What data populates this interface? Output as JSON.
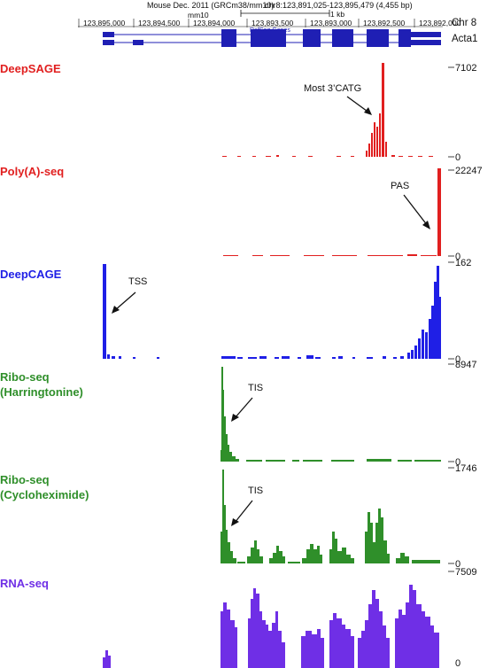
{
  "header": {
    "assembly": "Mouse Dec. 2011 (GRCm38/mm10)",
    "position": "chr8:123,891,025-123,895,479 (4,455 bp)",
    "scale_assembly": "mm10",
    "scale_label": "1 kb",
    "chrom_label": "Chr 8",
    "gene_label": "Acta1",
    "gene_track_name": "RefSeq Genes",
    "coords": [
      "123,895,000",
      "123,894,500",
      "123,894,000",
      "123,893,500",
      "123,893,000",
      "123,892,500",
      "123,892,000"
    ],
    "gene_color": "#1f1fb4"
  },
  "tracks": [
    {
      "id": "deepsage",
      "label": [
        "DeepSAGE"
      ],
      "color": "#e11f1f",
      "ymax": "7102",
      "ymin": "0",
      "annotation": "Most 3’CATG"
    },
    {
      "id": "polya",
      "label": [
        "Poly(A)-seq"
      ],
      "color": "#e11f1f",
      "ymax": "22247",
      "ymin": "0",
      "annotation": "PAS"
    },
    {
      "id": "deepcage",
      "label": [
        "DeepCAGE"
      ],
      "color": "#1f1fe6",
      "ymax": "162",
      "ymin": "0",
      "annotation": "TSS"
    },
    {
      "id": "ribo_harr",
      "label": [
        "Ribo-seq",
        "(Harringtonine)"
      ],
      "color": "#2f8f2a",
      "ymax": "8947",
      "ymin": "0",
      "annotation": "TIS"
    },
    {
      "id": "ribo_cyclo",
      "label": [
        "Ribo-seq",
        "(Cycloheximide)"
      ],
      "color": "#2f8f2a",
      "ymax": "1746",
      "ymin": "0",
      "annotation": "TIS"
    },
    {
      "id": "rnaseq",
      "label": [
        "RNA-seq"
      ],
      "color": "#6f2fe6",
      "ymax": "7509",
      "ymin": "0",
      "annotation": ""
    }
  ]
}
